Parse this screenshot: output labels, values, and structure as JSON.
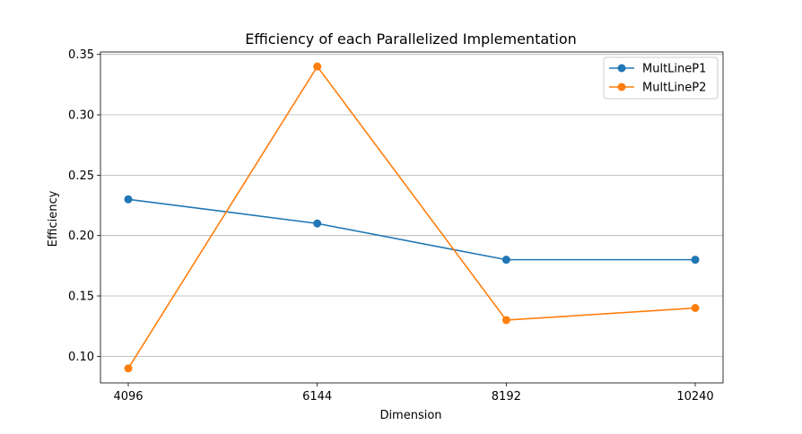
{
  "chart_data": {
    "type": "line",
    "title": "Efficiency of each Parallelized Implementation",
    "xlabel": "Dimension",
    "ylabel": "Efficiency",
    "categories": [
      "4096",
      "6144",
      "8192",
      "10240"
    ],
    "ylim": [
      0.078,
      0.352
    ],
    "yticks": [
      "0.10",
      "0.15",
      "0.20",
      "0.25",
      "0.30",
      "0.35"
    ],
    "grid": "y",
    "legend_position": "top-right",
    "series": [
      {
        "name": "MultLineP1",
        "color": "#1f77b4",
        "values": [
          0.23,
          0.21,
          0.18,
          0.18
        ]
      },
      {
        "name": "MultLineP2",
        "color": "#ff7f0e",
        "values": [
          0.09,
          0.34,
          0.13,
          0.14
        ]
      }
    ]
  }
}
